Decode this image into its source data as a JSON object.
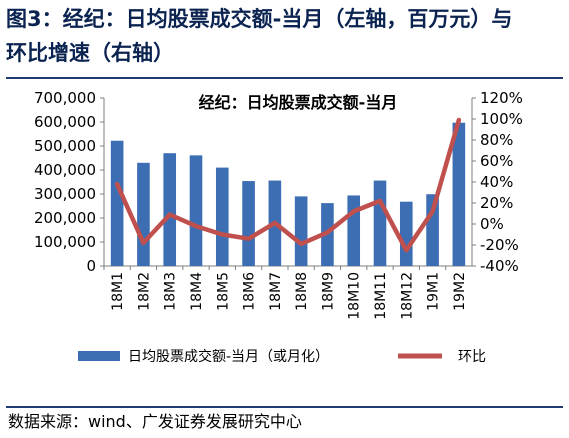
{
  "figure": {
    "title_line1": "图3：经纪：日均股票成交额-当月（左轴，百万元）与",
    "title_line2": "环比增速（右轴）",
    "source": "数据来源：wind、广发证券发展研究中心"
  },
  "chart_data": {
    "type": "bar",
    "title": "经纪：日均股票成交额-当月",
    "categories": [
      "18M1",
      "18M2",
      "18M3",
      "18M4",
      "18M5",
      "18M6",
      "18M7",
      "18M8",
      "18M9",
      "18M10",
      "18M11",
      "18M12",
      "19M1",
      "19M2"
    ],
    "series": [
      {
        "name": "日均股票成交额-当月（或月化）",
        "type": "bar",
        "axis": "left",
        "color": "#3d6eb4",
        "values": [
          522000,
          430000,
          470000,
          461000,
          410000,
          354000,
          356000,
          290000,
          262000,
          294000,
          356000,
          268000,
          299000,
          597000
        ]
      },
      {
        "name": "环比",
        "type": "line",
        "axis": "right",
        "color": "#c0504d",
        "values": [
          38,
          -18,
          9,
          -2,
          -10,
          -14,
          1,
          -19,
          -8,
          12,
          22,
          -25,
          12,
          99
        ]
      }
    ],
    "y_left": {
      "min": 0,
      "max": 700000,
      "step": 100000,
      "ticks": [
        "0",
        "100,000",
        "200,000",
        "300,000",
        "400,000",
        "500,000",
        "600,000",
        "700,000"
      ]
    },
    "y_right": {
      "min": -40,
      "max": 120,
      "step": 20,
      "ticks": [
        "-40%",
        "-20%",
        "0%",
        "20%",
        "40%",
        "60%",
        "80%",
        "100%",
        "120%"
      ]
    },
    "grid": false,
    "legend_position": "bottom"
  }
}
